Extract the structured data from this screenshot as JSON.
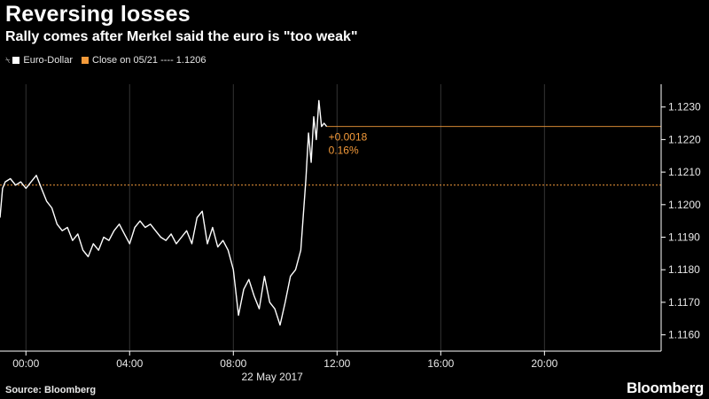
{
  "title": "Reversing losses",
  "subtitle": "Rally comes after Merkel said the euro is \"too weak\"",
  "legend": {
    "icon": "chart-small-icon",
    "series_label": "Euro-Dollar",
    "close_label": "Close on 05/21 ---- 1.1206"
  },
  "source": "Source: Bloomberg",
  "brand": "Bloomberg",
  "colors": {
    "background": "#000000",
    "series": "#ffffff",
    "reference": "#f39a3a",
    "grid": "#333333"
  },
  "chart_data": {
    "type": "line",
    "x_unit": "hours, 22 May 2017",
    "xlim": [
      -1,
      24.5
    ],
    "ylim": [
      1.1155,
      1.1237
    ],
    "xticks": [
      0,
      4,
      8,
      12,
      16,
      20
    ],
    "xtick_labels": [
      "00:00",
      "04:00",
      "08:00",
      "12:00",
      "16:00",
      "20:00"
    ],
    "x_sublabel": "22 May 2017",
    "yticks": [
      1.116,
      1.117,
      1.118,
      1.119,
      1.12,
      1.121,
      1.122,
      1.123
    ],
    "ytick_labels": [
      "1.1160",
      "1.1170",
      "1.1180",
      "1.1190",
      "1.1200",
      "1.1210",
      "1.1220",
      "1.1230"
    ],
    "grid": "vertical",
    "legend_position": "top-left",
    "series": [
      {
        "name": "Euro-Dollar",
        "x": [
          -1.0,
          -0.9,
          -0.8,
          -0.6,
          -0.4,
          -0.2,
          0.0,
          0.2,
          0.4,
          0.6,
          0.8,
          1.0,
          1.2,
          1.4,
          1.6,
          1.8,
          2.0,
          2.2,
          2.4,
          2.6,
          2.8,
          3.0,
          3.2,
          3.4,
          3.6,
          3.8,
          4.0,
          4.2,
          4.4,
          4.6,
          4.8,
          5.0,
          5.2,
          5.4,
          5.6,
          5.8,
          6.0,
          6.2,
          6.4,
          6.6,
          6.8,
          7.0,
          7.2,
          7.4,
          7.6,
          7.8,
          8.0,
          8.2,
          8.4,
          8.6,
          8.8,
          9.0,
          9.2,
          9.4,
          9.6,
          9.8,
          10.0,
          10.2,
          10.4,
          10.6,
          10.8,
          10.9,
          11.0,
          11.1,
          11.2,
          11.3,
          11.4,
          11.5,
          11.6
        ],
        "y": [
          1.1196,
          1.1205,
          1.1207,
          1.1208,
          1.1206,
          1.1207,
          1.1205,
          1.1207,
          1.1209,
          1.1205,
          1.1201,
          1.1199,
          1.1194,
          1.1192,
          1.1193,
          1.1189,
          1.1191,
          1.1186,
          1.1184,
          1.1188,
          1.1186,
          1.119,
          1.1189,
          1.1192,
          1.1194,
          1.1191,
          1.1188,
          1.1193,
          1.1195,
          1.1193,
          1.1194,
          1.1192,
          1.119,
          1.1189,
          1.1191,
          1.1188,
          1.119,
          1.1192,
          1.1188,
          1.1196,
          1.1198,
          1.1188,
          1.1193,
          1.1187,
          1.1189,
          1.1186,
          1.118,
          1.1166,
          1.1174,
          1.1177,
          1.1172,
          1.1168,
          1.1178,
          1.117,
          1.1168,
          1.1163,
          1.117,
          1.1178,
          1.118,
          1.1186,
          1.1208,
          1.1222,
          1.1213,
          1.1227,
          1.122,
          1.1232,
          1.1224,
          1.1225,
          1.1224
        ]
      }
    ],
    "reference_line": {
      "label": "Close on 05/21",
      "value": 1.1206
    },
    "last_line": {
      "value": 1.1224
    },
    "annotations": [
      "+0.0018",
      "0.16%"
    ]
  }
}
